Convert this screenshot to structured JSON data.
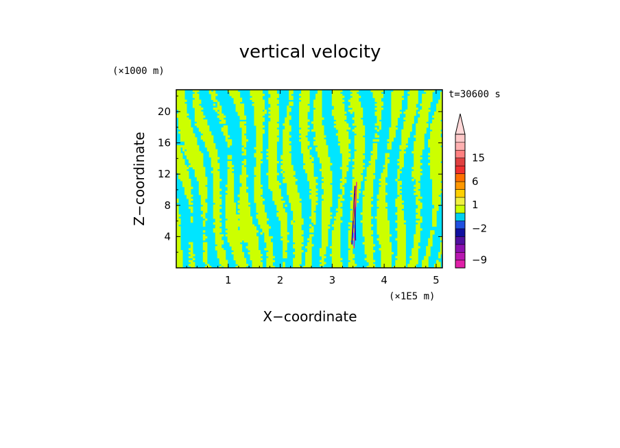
{
  "chart_data": {
    "type": "heatmap",
    "title": "vertical velocity",
    "xlabel": "X−coordinate",
    "ylabel": "Z−coordinate",
    "x_unit": "(×1E5 m)",
    "y_unit": "(×1000 m)",
    "time_label": "t=30600 s",
    "xlim": [
      0.0,
      5.12
    ],
    "ylim": [
      0.0,
      22.8
    ],
    "x_ticks": [
      "1",
      "2",
      "3",
      "4",
      "5"
    ],
    "y_ticks": [
      "4",
      "8",
      "12",
      "16",
      "20"
    ],
    "x_tick_values": [
      1,
      2,
      3,
      4,
      5
    ],
    "y_tick_values": [
      4,
      8,
      12,
      16,
      20
    ],
    "field_colors": {
      "low": "#00e5ff",
      "high": "#ccff00"
    },
    "colorbar": {
      "levels": [
        -11,
        -9,
        -7,
        -5,
        -3,
        -2,
        -1,
        0,
        1,
        2,
        3,
        6,
        9,
        12,
        15,
        18,
        21,
        24
      ],
      "colors": [
        "#e020a8",
        "#b818b0",
        "#8c10b0",
        "#5010a0",
        "#1010a0",
        "#2050e0",
        "#00d0f0",
        "#ccff00",
        "#f0f040",
        "#ffd000",
        "#ff9800",
        "#ff7000",
        "#f03030",
        "#e04040",
        "#ff8080",
        "#ffb0b0",
        "#ffc8c8"
      ],
      "labeled_levels": [
        "15",
        "6",
        "1",
        "−2",
        "−9"
      ],
      "labeled_values": [
        15,
        6,
        1,
        -2,
        -9
      ]
    }
  }
}
